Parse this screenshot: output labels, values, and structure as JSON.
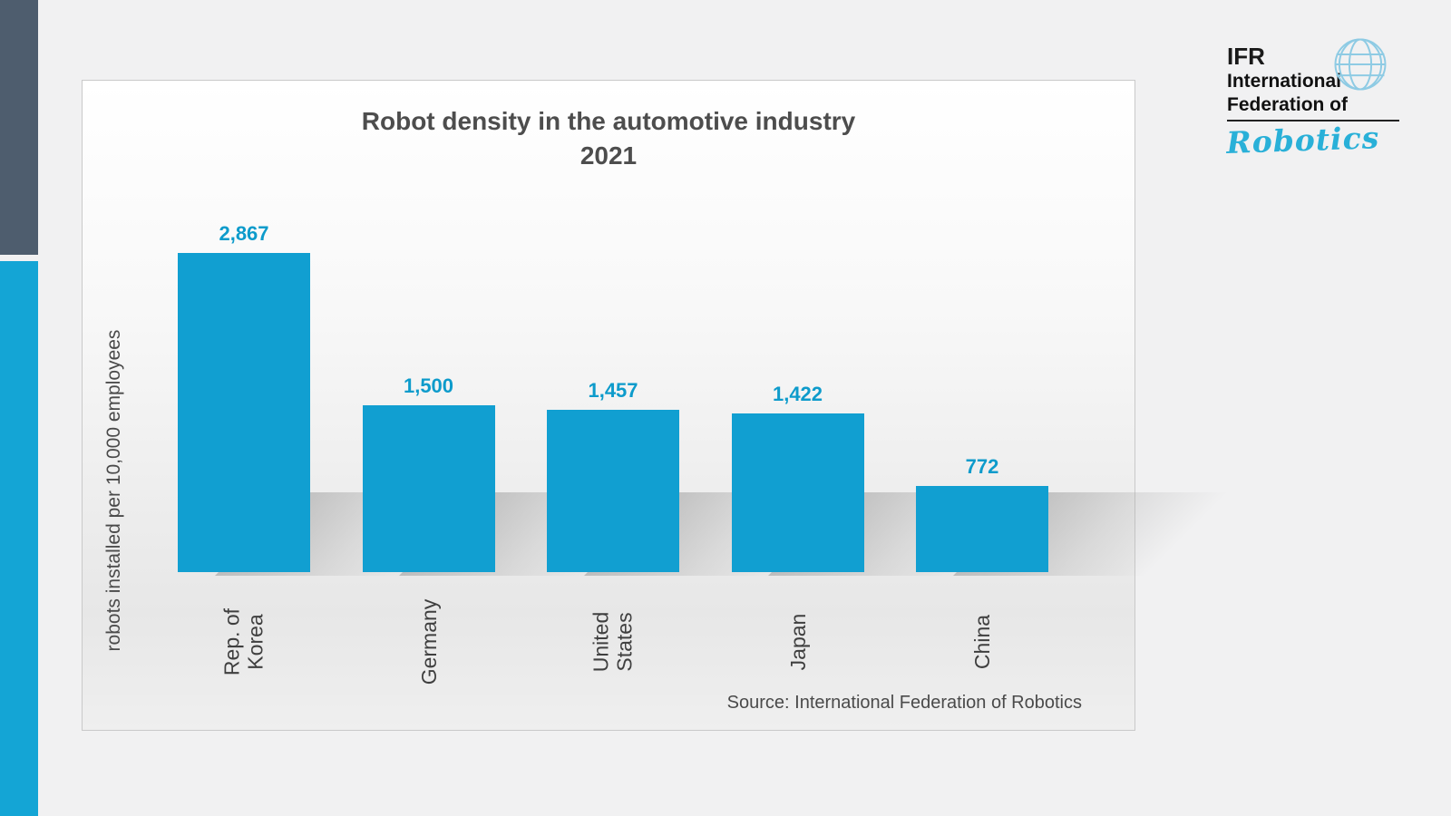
{
  "accent_colors": {
    "bar": "#119fd1",
    "stripe_top": "#4e5d6e",
    "stripe_bottom": "#14a5d5",
    "value_label": "#0d9bcb",
    "robotics_script": "#29b0d8"
  },
  "chart_data": {
    "type": "bar",
    "title": "Robot density in the automotive industry",
    "subtitle": "2021",
    "ylabel": "robots installed per 10,000 employees",
    "categories": [
      "Rep. of\nKorea",
      "Germany",
      "United\nStates",
      "Japan",
      "China"
    ],
    "values": [
      2867,
      1500,
      1457,
      1422,
      772
    ],
    "value_labels": [
      "2,867",
      "1,500",
      "1,457",
      "1,422",
      "772"
    ],
    "ylim": [
      0,
      2900
    ],
    "grid": false,
    "legend": false,
    "source": "Source: International Federation of Robotics"
  },
  "logo": {
    "abbr": "IFR",
    "line2": "International",
    "line3": "Federation of",
    "script": "Robotics"
  }
}
